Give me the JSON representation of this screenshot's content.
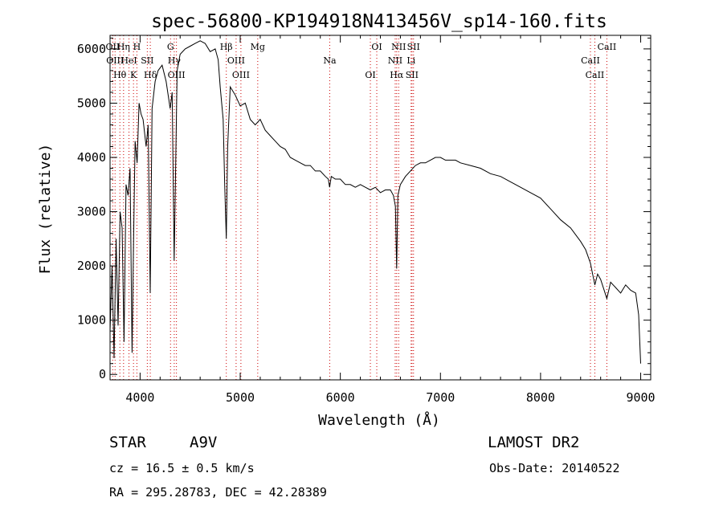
{
  "chart_data": {
    "type": "line",
    "title": "spec-56800-KP194918N413456V_sp14-160.fits",
    "xlabel": "Wavelength (Å)",
    "ylabel": "Flux (relative)",
    "xlim": [
      3700,
      9100
    ],
    "ylim": [
      -100,
      6250
    ],
    "x_ticks": [
      4000,
      5000,
      6000,
      7000,
      8000,
      9000
    ],
    "y_ticks": [
      0,
      1000,
      2000,
      3000,
      4000,
      5000,
      6000
    ],
    "grid": false,
    "series": [
      {
        "x": [
          3700,
          3720,
          3740,
          3760,
          3780,
          3800,
          3820,
          3840,
          3860,
          3880,
          3900,
          3920,
          3935,
          3950,
          3970,
          3990,
          4010,
          4030,
          4060,
          4080,
          4101,
          4120,
          4150,
          4180,
          4220,
          4260,
          4300,
          4320,
          4340,
          4350,
          4370,
          4400,
          4450,
          4500,
          4550,
          4600,
          4650,
          4700,
          4750,
          4780,
          4800,
          4830,
          4845,
          4861,
          4875,
          4900,
          4950,
          5000,
          5050,
          5100,
          5150,
          5200,
          5250,
          5300,
          5350,
          5400,
          5450,
          5500,
          5550,
          5600,
          5650,
          5700,
          5750,
          5800,
          5850,
          5880,
          5893,
          5910,
          5950,
          6000,
          6050,
          6100,
          6150,
          6200,
          6250,
          6300,
          6350,
          6400,
          6450,
          6500,
          6530,
          6550,
          6563,
          6575,
          6600,
          6650,
          6700,
          6750,
          6800,
          6850,
          6900,
          6950,
          7000,
          7050,
          7100,
          7150,
          7200,
          7300,
          7400,
          7500,
          7600,
          7700,
          7800,
          7900,
          8000,
          8100,
          8200,
          8300,
          8400,
          8450,
          8498,
          8520,
          8542,
          8570,
          8600,
          8662,
          8700,
          8750,
          8800,
          8850,
          8900,
          8950,
          8980,
          9000
        ],
        "y": [
          800,
          2000,
          300,
          2500,
          900,
          3000,
          2700,
          600,
          3500,
          3300,
          3800,
          400,
          2500,
          4300,
          3900,
          5000,
          4800,
          4700,
          4200,
          4600,
          1500,
          4900,
          5400,
          5600,
          5700,
          5400,
          4900,
          5200,
          2100,
          3200,
          5600,
          5900,
          6000,
          6050,
          6100,
          6150,
          6100,
          5950,
          6000,
          5800,
          5300,
          4700,
          3500,
          2500,
          4200,
          5300,
          5150,
          4950,
          5000,
          4700,
          4600,
          4700,
          4500,
          4400,
          4300,
          4200,
          4150,
          4000,
          3950,
          3900,
          3850,
          3850,
          3750,
          3750,
          3650,
          3600,
          3450,
          3650,
          3600,
          3600,
          3500,
          3500,
          3450,
          3500,
          3450,
          3400,
          3450,
          3350,
          3400,
          3400,
          3300,
          3100,
          1950,
          3300,
          3500,
          3650,
          3750,
          3850,
          3900,
          3900,
          3950,
          4000,
          4000,
          3950,
          3950,
          3950,
          3900,
          3850,
          3800,
          3700,
          3650,
          3550,
          3450,
          3350,
          3250,
          3050,
          2850,
          2700,
          2450,
          2300,
          2050,
          1850,
          1650,
          1850,
          1750,
          1400,
          1700,
          1600,
          1500,
          1650,
          1550,
          1500,
          1100,
          200
        ]
      }
    ],
    "lines": [
      {
        "wavelength": 3727,
        "label": "OII"
      },
      {
        "wavelength": 3750,
        "label": "OIII"
      },
      {
        "wavelength": 3798,
        "label": "Hθ"
      },
      {
        "wavelength": 3835,
        "label": "Hη"
      },
      {
        "wavelength": 3889,
        "label": "HeI"
      },
      {
        "wavelength": 3934,
        "label": "K"
      },
      {
        "wavelength": 3968,
        "label": "H"
      },
      {
        "wavelength": 4072,
        "label": "SII"
      },
      {
        "wavelength": 4102,
        "label": "Hδ"
      },
      {
        "wavelength": 4304,
        "label": "G"
      },
      {
        "wavelength": 4341,
        "label": "Hγ"
      },
      {
        "wavelength": 4363,
        "label": "OIII"
      },
      {
        "wavelength": 4861,
        "label": "Hβ"
      },
      {
        "wavelength": 4959,
        "label": "OIII"
      },
      {
        "wavelength": 5007,
        "label": "OIII"
      },
      {
        "wavelength": 5175,
        "label": "Mg"
      },
      {
        "wavelength": 5894,
        "label": "Na"
      },
      {
        "wavelength": 6300,
        "label": "OI"
      },
      {
        "wavelength": 6364,
        "label": "OI"
      },
      {
        "wavelength": 6548,
        "label": "NII"
      },
      {
        "wavelength": 6563,
        "label": "Hα"
      },
      {
        "wavelength": 6583,
        "label": "NII"
      },
      {
        "wavelength": 6707,
        "label": "Li"
      },
      {
        "wavelength": 6716,
        "label": "SII"
      },
      {
        "wavelength": 6731,
        "label": "SII"
      },
      {
        "wavelength": 8498,
        "label": "CaII"
      },
      {
        "wavelength": 8542,
        "label": "CaII"
      },
      {
        "wavelength": 8662,
        "label": "CaII"
      }
    ],
    "line_color": "#cc0000"
  },
  "info": {
    "object_type": "STAR",
    "subclass": "A9V",
    "survey": "LAMOST DR2",
    "cz": "cz = 16.5 ± 0.5 km/s",
    "obs_date": "Obs-Date: 20140522",
    "coords": "RA = 295.28783, DEC =  42.28389"
  }
}
